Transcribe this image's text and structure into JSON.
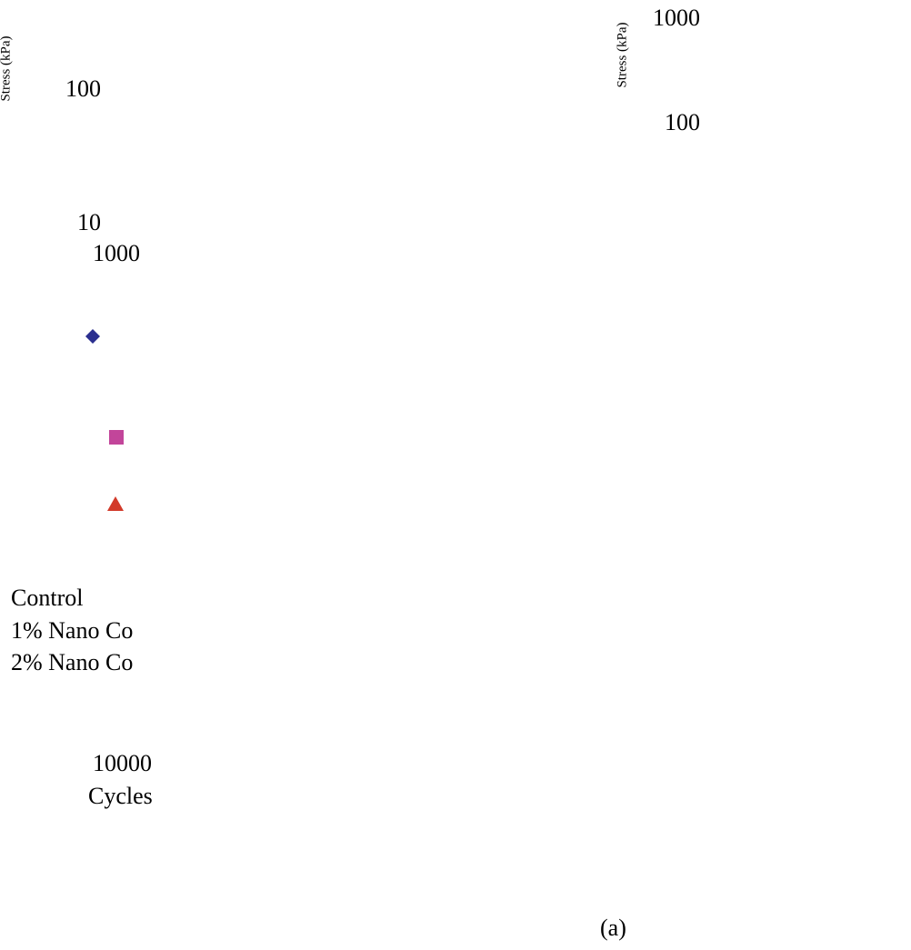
{
  "chart_data": {
    "type": "scatter",
    "panel_label": "(a)",
    "ylabel": "Stress (kPa)",
    "xlabel": "Cycles",
    "y_tick_labels_left": [
      "100",
      "10"
    ],
    "x_tick_labels": [
      "1000",
      "10000"
    ],
    "y_tick_labels_right": [
      "1000",
      "100"
    ],
    "yscale": "log",
    "xscale": "log",
    "series": [
      {
        "name": "Control",
        "marker": "diamond",
        "color": "#2b2f8f"
      },
      {
        "name": "1% Nano Co",
        "marker": "square",
        "color": "#c2459a"
      },
      {
        "name": "2% Nano Co",
        "marker": "triangle",
        "color": "#d23a2a"
      }
    ]
  }
}
